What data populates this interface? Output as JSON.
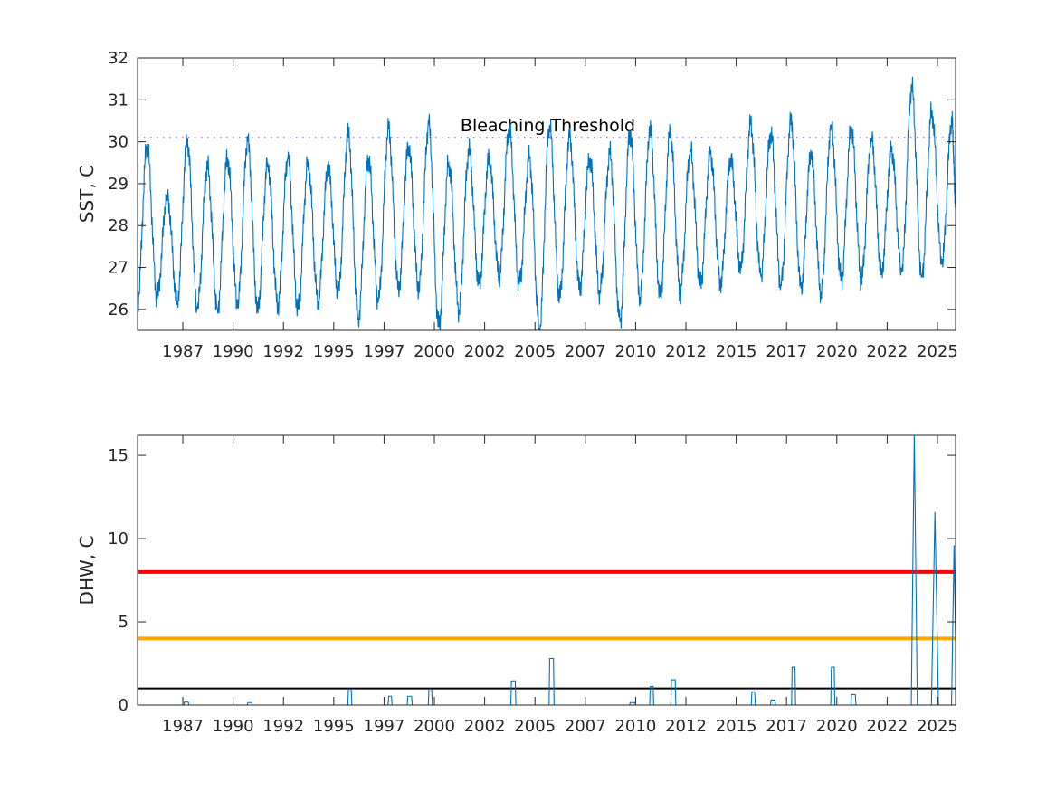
{
  "chart_data": [
    {
      "type": "line",
      "ylabel": "SST, C",
      "xlim": [
        1984.75,
        2025.4
      ],
      "ylim": [
        25.5,
        32
      ],
      "yticks": [
        26,
        27,
        28,
        29,
        30,
        31,
        32
      ],
      "xticks": [
        1987,
        1989.5,
        1992,
        1994.5,
        1997,
        1999.5,
        2002,
        2004.5,
        2007,
        2009.5,
        2012,
        2014.5,
        2017,
        2019.5,
        2022,
        2024.5
      ],
      "xtick_labels": [
        "1987",
        "1990",
        "1992",
        "1995",
        "1997",
        "2000",
        "2002",
        "2005",
        "2007",
        "2010",
        "2012",
        "2015",
        "2017",
        "2020",
        "2022",
        "2025"
      ],
      "threshold": {
        "value": 30.1,
        "label": "Bleaching Threshold",
        "label_x": 2000.8,
        "color": "#7b7bff"
      },
      "series_color": "#0072bd",
      "peaks": [
        29.9,
        28.7,
        30.0,
        29.4,
        29.6,
        30.0,
        29.5,
        29.6,
        29.5,
        29.4,
        30.2,
        29.6,
        30.3,
        29.9,
        30.4,
        29.5,
        29.8,
        29.6,
        30.3,
        29.6,
        30.4,
        30.1,
        29.6,
        29.7,
        30.2,
        30.3,
        30.2,
        29.8,
        29.7,
        29.6,
        30.4,
        30.2,
        30.5,
        29.7,
        30.4,
        30.3,
        30.1,
        29.8,
        31.3,
        30.7,
        30.5
      ],
      "troughs": [
        26.3,
        26.2,
        26.0,
        26.0,
        26.1,
        26.0,
        26.1,
        26.0,
        26.2,
        26.4,
        25.8,
        26.2,
        26.5,
        26.5,
        25.6,
        26.0,
        26.6,
        26.8,
        26.6,
        25.5,
        26.3,
        26.5,
        26.4,
        25.7,
        26.3,
        26.3,
        26.4,
        26.6,
        26.6,
        27.0,
        26.8,
        26.6,
        26.5,
        26.4,
        26.7,
        26.7,
        26.9,
        26.9,
        26.8,
        27.1
      ],
      "first_year": 1985,
      "start_value": 26.2,
      "end_value": 28.6
    },
    {
      "type": "area",
      "ylabel": "DHW, C",
      "xlim": [
        1984.75,
        2025.4
      ],
      "ylim": [
        0,
        16.2
      ],
      "yticks": [
        0,
        5,
        10,
        15
      ],
      "xticks": [
        1987,
        1989.5,
        1992,
        1994.5,
        1997,
        1999.5,
        2002,
        2004.5,
        2007,
        2009.5,
        2012,
        2014.5,
        2017,
        2019.5,
        2022,
        2024.5
      ],
      "xtick_labels": [
        "1987",
        "1990",
        "1992",
        "1995",
        "1997",
        "2000",
        "2002",
        "2005",
        "2007",
        "2010",
        "2012",
        "2015",
        "2017",
        "2020",
        "2022",
        "2025"
      ],
      "series_color": "#0072bd",
      "events": [
        [
          1987.05,
          1987.3,
          0.18
        ],
        [
          1990.2,
          1990.45,
          0.15
        ],
        [
          1995.2,
          1995.4,
          0.95
        ],
        [
          1997.2,
          1997.4,
          0.53
        ],
        [
          1998.15,
          1998.4,
          0.53
        ],
        [
          1999.2,
          1999.4,
          0.95
        ],
        [
          2003.3,
          2003.55,
          1.45
        ],
        [
          2005.2,
          2005.45,
          2.8
        ],
        [
          2009.2,
          2009.5,
          0.15
        ],
        [
          2010.2,
          2010.4,
          1.12
        ],
        [
          2011.25,
          2011.5,
          1.52
        ],
        [
          2015.25,
          2015.45,
          0.8
        ],
        [
          2016.2,
          2016.45,
          0.3
        ],
        [
          2017.25,
          2017.45,
          2.28
        ],
        [
          2019.2,
          2019.4,
          2.28
        ],
        [
          2020.2,
          2020.45,
          0.63
        ],
        [
          2023.2,
          2023.5,
          16.2
        ],
        [
          2024.2,
          2024.55,
          11.6
        ],
        [
          2025.2,
          2025.45,
          9.6
        ]
      ],
      "reference_lines": [
        {
          "value": 8,
          "color": "#ff0000"
        },
        {
          "value": 4,
          "color": "#ffa500"
        },
        {
          "value": 1,
          "color": "#000000"
        }
      ]
    }
  ]
}
